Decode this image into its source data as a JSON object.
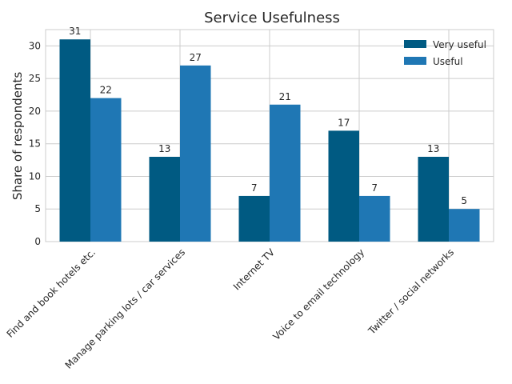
{
  "chart_data": {
    "type": "bar",
    "title": "Service Usefulness",
    "xlabel": "",
    "ylabel": "Share of respondents",
    "categories": [
      "Find and book hotels etc.",
      "Manage parking lots / car services",
      "Internet TV",
      "Voice to email technology",
      "Twitter / social networks"
    ],
    "series": [
      {
        "name": "Very useful",
        "color": "#005a82",
        "values": [
          31,
          13,
          7,
          17,
          13
        ]
      },
      {
        "name": "Useful",
        "color": "#1f77b4",
        "values": [
          22,
          27,
          21,
          7,
          5
        ]
      }
    ],
    "ylim": [
      0,
      32.5
    ],
    "yticks": [
      0,
      5,
      10,
      15,
      20,
      25,
      30
    ],
    "grid": true,
    "legend": "top-right"
  }
}
